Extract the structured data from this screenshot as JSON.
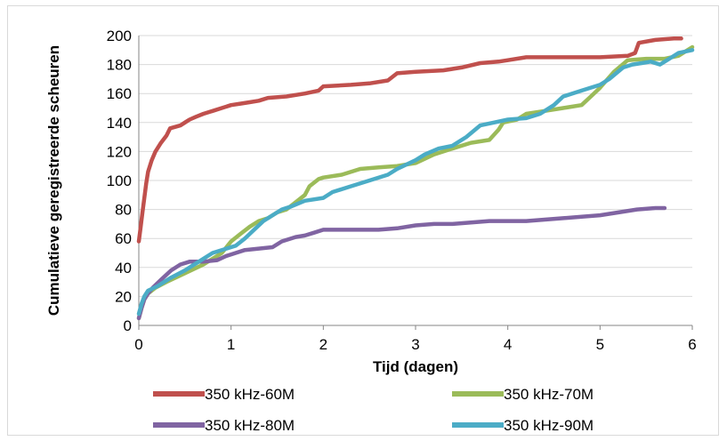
{
  "chart_data": {
    "type": "line",
    "title": "",
    "xlabel": "Tijd (dagen)",
    "ylabel": "Cumulatieve geregistreerde scheuren",
    "xlim": [
      0,
      6
    ],
    "ylim": [
      0,
      200
    ],
    "xticks": [
      0,
      1,
      2,
      3,
      4,
      5,
      6
    ],
    "yticks": [
      0,
      20,
      40,
      60,
      80,
      100,
      120,
      140,
      160,
      180,
      200
    ],
    "grid": "horizontal",
    "legend_position": "bottom",
    "series": [
      {
        "name": "350 kHz-60M",
        "color": "#c0504d",
        "points": [
          [
            0.0,
            58
          ],
          [
            0.02,
            68
          ],
          [
            0.04,
            78
          ],
          [
            0.06,
            88
          ],
          [
            0.08,
            98
          ],
          [
            0.1,
            106
          ],
          [
            0.14,
            114
          ],
          [
            0.18,
            120
          ],
          [
            0.24,
            126
          ],
          [
            0.3,
            131
          ],
          [
            0.34,
            136
          ],
          [
            0.45,
            138
          ],
          [
            0.5,
            140
          ],
          [
            0.55,
            142
          ],
          [
            0.62,
            144
          ],
          [
            0.7,
            146
          ],
          [
            0.8,
            148
          ],
          [
            0.9,
            150
          ],
          [
            1.0,
            152
          ],
          [
            1.1,
            153
          ],
          [
            1.2,
            154
          ],
          [
            1.3,
            155
          ],
          [
            1.4,
            157
          ],
          [
            1.6,
            158
          ],
          [
            1.8,
            160
          ],
          [
            1.95,
            162
          ],
          [
            2.0,
            165
          ],
          [
            2.3,
            166
          ],
          [
            2.5,
            167
          ],
          [
            2.7,
            169
          ],
          [
            2.8,
            174
          ],
          [
            3.0,
            175
          ],
          [
            3.3,
            176
          ],
          [
            3.5,
            178
          ],
          [
            3.7,
            181
          ],
          [
            3.9,
            182
          ],
          [
            4.0,
            183
          ],
          [
            4.2,
            185
          ],
          [
            4.5,
            185
          ],
          [
            4.8,
            185
          ],
          [
            5.0,
            185
          ],
          [
            5.3,
            186
          ],
          [
            5.38,
            188
          ],
          [
            5.42,
            195
          ],
          [
            5.6,
            197
          ],
          [
            5.8,
            198
          ],
          [
            5.88,
            198
          ]
        ]
      },
      {
        "name": "350 kHz-70M",
        "color": "#9bbb59",
        "points": [
          [
            0.0,
            5
          ],
          [
            0.03,
            12
          ],
          [
            0.06,
            18
          ],
          [
            0.1,
            22
          ],
          [
            0.18,
            26
          ],
          [
            0.3,
            30
          ],
          [
            0.5,
            36
          ],
          [
            0.7,
            42
          ],
          [
            0.8,
            46
          ],
          [
            0.9,
            50
          ],
          [
            1.0,
            58
          ],
          [
            1.1,
            63
          ],
          [
            1.2,
            68
          ],
          [
            1.3,
            72
          ],
          [
            1.4,
            74
          ],
          [
            1.5,
            78
          ],
          [
            1.6,
            80
          ],
          [
            1.7,
            85
          ],
          [
            1.8,
            90
          ],
          [
            1.85,
            96
          ],
          [
            1.95,
            101
          ],
          [
            2.0,
            102
          ],
          [
            2.2,
            104
          ],
          [
            2.4,
            108
          ],
          [
            2.6,
            109
          ],
          [
            2.8,
            110
          ],
          [
            3.0,
            112
          ],
          [
            3.1,
            115
          ],
          [
            3.2,
            118
          ],
          [
            3.4,
            122
          ],
          [
            3.6,
            126
          ],
          [
            3.8,
            128
          ],
          [
            3.9,
            135
          ],
          [
            3.95,
            140
          ],
          [
            4.1,
            142
          ],
          [
            4.2,
            146
          ],
          [
            4.4,
            148
          ],
          [
            4.6,
            150
          ],
          [
            4.8,
            152
          ],
          [
            4.9,
            158
          ],
          [
            5.0,
            164
          ],
          [
            5.15,
            175
          ],
          [
            5.3,
            183
          ],
          [
            5.5,
            184
          ],
          [
            5.7,
            184
          ],
          [
            5.85,
            186
          ],
          [
            6.0,
            192
          ]
        ]
      },
      {
        "name": "350 kHz-80M",
        "color": "#8064a2",
        "points": [
          [
            0.0,
            5
          ],
          [
            0.03,
            12
          ],
          [
            0.06,
            18
          ],
          [
            0.1,
            22
          ],
          [
            0.15,
            26
          ],
          [
            0.25,
            32
          ],
          [
            0.35,
            38
          ],
          [
            0.45,
            42
          ],
          [
            0.55,
            44
          ],
          [
            0.7,
            44
          ],
          [
            0.85,
            45
          ],
          [
            0.95,
            48
          ],
          [
            1.05,
            50
          ],
          [
            1.15,
            52
          ],
          [
            1.3,
            53
          ],
          [
            1.45,
            54
          ],
          [
            1.55,
            58
          ],
          [
            1.7,
            61
          ],
          [
            1.8,
            62
          ],
          [
            1.9,
            64
          ],
          [
            2.0,
            66
          ],
          [
            2.2,
            66
          ],
          [
            2.4,
            66
          ],
          [
            2.6,
            66
          ],
          [
            2.8,
            67
          ],
          [
            3.0,
            69
          ],
          [
            3.2,
            70
          ],
          [
            3.4,
            70
          ],
          [
            3.6,
            71
          ],
          [
            3.8,
            72
          ],
          [
            4.0,
            72
          ],
          [
            4.2,
            72
          ],
          [
            4.4,
            73
          ],
          [
            4.6,
            74
          ],
          [
            4.8,
            75
          ],
          [
            5.0,
            76
          ],
          [
            5.2,
            78
          ],
          [
            5.4,
            80
          ],
          [
            5.6,
            81
          ],
          [
            5.7,
            81
          ]
        ]
      },
      {
        "name": "350 kHz-90M",
        "color": "#4bacc6",
        "points": [
          [
            0.0,
            8
          ],
          [
            0.03,
            15
          ],
          [
            0.06,
            20
          ],
          [
            0.1,
            24
          ],
          [
            0.2,
            27
          ],
          [
            0.35,
            33
          ],
          [
            0.5,
            38
          ],
          [
            0.65,
            44
          ],
          [
            0.8,
            50
          ],
          [
            0.95,
            53
          ],
          [
            1.05,
            55
          ],
          [
            1.15,
            60
          ],
          [
            1.25,
            66
          ],
          [
            1.35,
            72
          ],
          [
            1.45,
            76
          ],
          [
            1.55,
            80
          ],
          [
            1.65,
            82
          ],
          [
            1.8,
            86
          ],
          [
            2.0,
            88
          ],
          [
            2.1,
            92
          ],
          [
            2.3,
            96
          ],
          [
            2.5,
            100
          ],
          [
            2.7,
            104
          ],
          [
            2.8,
            108
          ],
          [
            3.0,
            114
          ],
          [
            3.1,
            118
          ],
          [
            3.25,
            122
          ],
          [
            3.4,
            124
          ],
          [
            3.55,
            130
          ],
          [
            3.7,
            138
          ],
          [
            3.85,
            140
          ],
          [
            4.0,
            142
          ],
          [
            4.2,
            143
          ],
          [
            4.35,
            146
          ],
          [
            4.5,
            152
          ],
          [
            4.6,
            158
          ],
          [
            4.8,
            162
          ],
          [
            5.0,
            166
          ],
          [
            5.1,
            170
          ],
          [
            5.25,
            178
          ],
          [
            5.35,
            180
          ],
          [
            5.45,
            181
          ],
          [
            5.55,
            182
          ],
          [
            5.65,
            180
          ],
          [
            5.75,
            184
          ],
          [
            5.85,
            188
          ],
          [
            6.0,
            190
          ]
        ]
      }
    ]
  }
}
